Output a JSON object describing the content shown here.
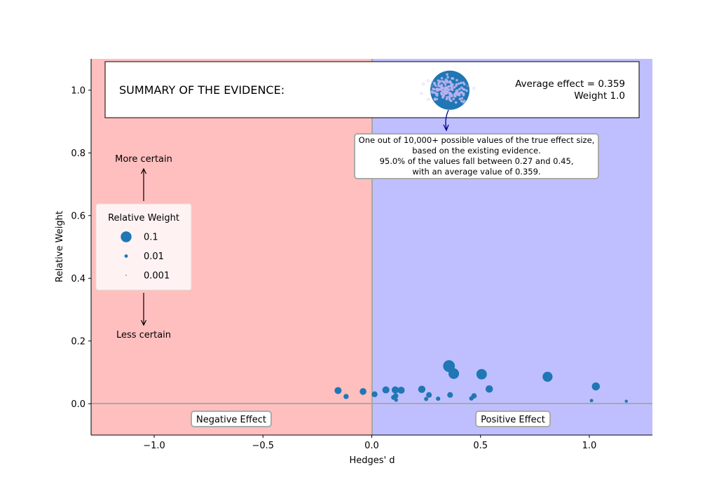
{
  "chart_data": {
    "type": "scatter",
    "title": "",
    "xlabel": "Hedges' d",
    "ylabel": "Relative Weight",
    "xlim": [
      -1.29,
      1.29
    ],
    "ylim": [
      -0.1,
      1.1
    ],
    "xticks": [
      -1.0,
      -0.5,
      0.0,
      0.5,
      1.0
    ],
    "xtick_labels": [
      "−1.0",
      "−0.5",
      "0.0",
      "0.5",
      "1.0"
    ],
    "yticks": [
      0.0,
      0.2,
      0.4,
      0.6,
      0.8,
      1.0
    ],
    "ytick_labels": [
      "0.0",
      "0.2",
      "0.4",
      "0.6",
      "0.8",
      "1.0"
    ],
    "grid": false,
    "regions": {
      "negative": {
        "label": "Negative Effect",
        "color": "#ffbfbf",
        "range": [
          -1.29,
          0
        ]
      },
      "positive": {
        "label": "Positive Effect",
        "color": "#bfbfff",
        "range": [
          0,
          1.29
        ]
      }
    },
    "point_color": "#1f77b4",
    "points": [
      {
        "x": -0.155,
        "y": 0.042,
        "w": 0.042
      },
      {
        "x": -0.118,
        "y": 0.023,
        "w": 0.023
      },
      {
        "x": -0.04,
        "y": 0.039,
        "w": 0.039
      },
      {
        "x": 0.013,
        "y": 0.03,
        "w": 0.03
      },
      {
        "x": 0.065,
        "y": 0.044,
        "w": 0.044
      },
      {
        "x": 0.1,
        "y": 0.02,
        "w": 0.02
      },
      {
        "x": 0.108,
        "y": 0.044,
        "w": 0.044
      },
      {
        "x": 0.11,
        "y": 0.025,
        "w": 0.025
      },
      {
        "x": 0.112,
        "y": 0.012,
        "w": 0.012
      },
      {
        "x": 0.135,
        "y": 0.043,
        "w": 0.043
      },
      {
        "x": 0.23,
        "y": 0.046,
        "w": 0.046
      },
      {
        "x": 0.25,
        "y": 0.015,
        "w": 0.015
      },
      {
        "x": 0.263,
        "y": 0.028,
        "w": 0.028
      },
      {
        "x": 0.305,
        "y": 0.016,
        "w": 0.016
      },
      {
        "x": 0.36,
        "y": 0.028,
        "w": 0.028
      },
      {
        "x": 0.355,
        "y": 0.12,
        "w": 0.12
      },
      {
        "x": 0.377,
        "y": 0.096,
        "w": 0.096
      },
      {
        "x": 0.458,
        "y": 0.017,
        "w": 0.017
      },
      {
        "x": 0.47,
        "y": 0.025,
        "w": 0.025
      },
      {
        "x": 0.505,
        "y": 0.094,
        "w": 0.094
      },
      {
        "x": 0.54,
        "y": 0.047,
        "w": 0.047
      },
      {
        "x": 0.808,
        "y": 0.086,
        "w": 0.086
      },
      {
        "x": 1.01,
        "y": 0.01,
        "w": 0.01
      },
      {
        "x": 1.03,
        "y": 0.055,
        "w": 0.055
      },
      {
        "x": 1.17,
        "y": 0.008,
        "w": 0.008
      }
    ],
    "legend": {
      "title": "Relative Weight",
      "placement": "center-left",
      "entries": [
        {
          "label": "0.1",
          "w": 0.1
        },
        {
          "label": "0.01",
          "w": 0.01
        },
        {
          "label": "0.001",
          "w": 0.001
        }
      ]
    },
    "certainty": {
      "more": "More certain",
      "less": "Less certain"
    },
    "summary": {
      "title": "SUMMARY OF THE EVIDENCE:",
      "average_label": "Average effect = 0.359",
      "weight_label": "Weight 1.0",
      "average_effect": 0.359,
      "weight": 1.0,
      "interval": [
        0.27,
        0.45
      ],
      "callout_lines": [
        "One out of 10,000+ possible values of the true effect size,",
        "based on the existing evidence.",
        "95.0% of the values fall between 0.27 and 0.45,",
        "with an average value of 0.359."
      ]
    }
  }
}
